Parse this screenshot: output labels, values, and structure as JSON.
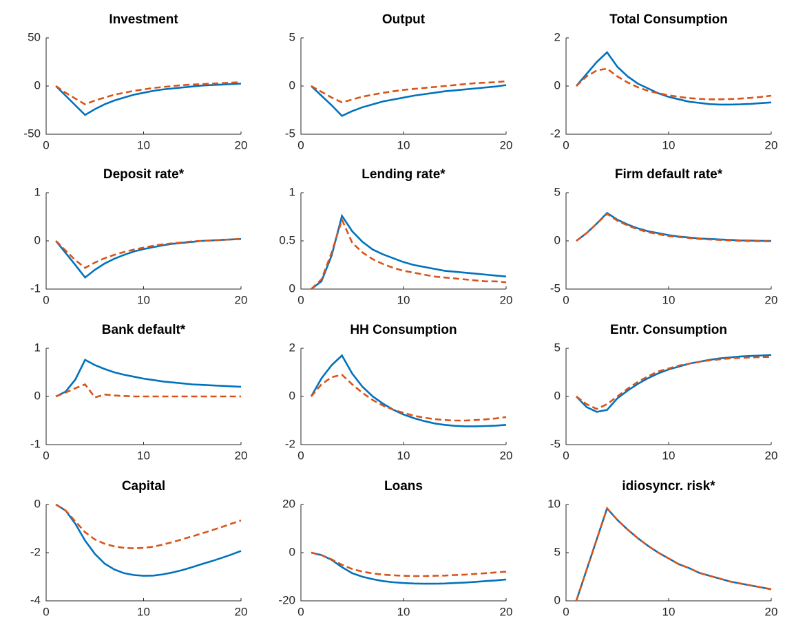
{
  "chart_data": [
    {
      "type": "line",
      "title": "Investment",
      "x": [
        1,
        2,
        3,
        4,
        5,
        6,
        7,
        8,
        9,
        10,
        11,
        12,
        13,
        14,
        15,
        16,
        17,
        18,
        19,
        20
      ],
      "xlim": [
        0,
        20
      ],
      "xticks": [
        0,
        10,
        20
      ],
      "ylim": [
        -50,
        50
      ],
      "yticks": [
        -50,
        0,
        50
      ],
      "series": [
        {
          "color": "#0072BD",
          "linestyle": "solid",
          "values": [
            0,
            -10,
            -20,
            -30,
            -24,
            -19,
            -15,
            -12,
            -9,
            -7,
            -5,
            -3.5,
            -2.5,
            -1.5,
            -0.5,
            0.5,
            1,
            1.5,
            2,
            2.5
          ]
        },
        {
          "color": "#D95319",
          "linestyle": "dashed",
          "values": [
            0,
            -7,
            -13,
            -19,
            -15,
            -12,
            -9,
            -7,
            -5,
            -3.5,
            -2,
            -1,
            0,
            1,
            1.5,
            2,
            2.5,
            3,
            3.5,
            4
          ]
        }
      ]
    },
    {
      "type": "line",
      "title": "Output",
      "x": [
        1,
        2,
        3,
        4,
        5,
        6,
        7,
        8,
        9,
        10,
        11,
        12,
        13,
        14,
        15,
        16,
        17,
        18,
        19,
        20
      ],
      "xlim": [
        0,
        20
      ],
      "xticks": [
        0,
        10,
        20
      ],
      "ylim": [
        -5,
        5
      ],
      "yticks": [
        -5,
        0,
        5
      ],
      "series": [
        {
          "color": "#0072BD",
          "linestyle": "solid",
          "values": [
            0,
            -1,
            -2,
            -3.1,
            -2.6,
            -2.2,
            -1.9,
            -1.6,
            -1.4,
            -1.2,
            -1.0,
            -0.85,
            -0.7,
            -0.55,
            -0.45,
            -0.35,
            -0.25,
            -0.15,
            -0.05,
            0.1
          ]
        },
        {
          "color": "#D95319",
          "linestyle": "dashed",
          "values": [
            0,
            -0.6,
            -1.2,
            -1.7,
            -1.4,
            -1.1,
            -0.9,
            -0.7,
            -0.55,
            -0.4,
            -0.3,
            -0.2,
            -0.1,
            0,
            0.1,
            0.2,
            0.3,
            0.35,
            0.4,
            0.5
          ]
        }
      ]
    },
    {
      "type": "line",
      "title": "Total Consumption",
      "x": [
        1,
        2,
        3,
        4,
        5,
        6,
        7,
        8,
        9,
        10,
        11,
        12,
        13,
        14,
        15,
        16,
        17,
        18,
        19,
        20
      ],
      "xlim": [
        0,
        20
      ],
      "xticks": [
        0,
        10,
        20
      ],
      "ylim": [
        -2,
        2
      ],
      "yticks": [
        -2,
        0,
        2
      ],
      "series": [
        {
          "color": "#0072BD",
          "linestyle": "solid",
          "values": [
            0,
            0.5,
            1.0,
            1.4,
            0.8,
            0.4,
            0.1,
            -0.1,
            -0.3,
            -0.45,
            -0.55,
            -0.65,
            -0.7,
            -0.75,
            -0.77,
            -0.77,
            -0.76,
            -0.74,
            -0.71,
            -0.68
          ]
        },
        {
          "color": "#D95319",
          "linestyle": "dashed",
          "values": [
            0,
            0.4,
            0.65,
            0.72,
            0.4,
            0.15,
            -0.05,
            -0.2,
            -0.3,
            -0.38,
            -0.45,
            -0.5,
            -0.53,
            -0.55,
            -0.55,
            -0.54,
            -0.52,
            -0.49,
            -0.45,
            -0.4
          ]
        }
      ]
    },
    {
      "type": "line",
      "title": "Deposit rate*",
      "x": [
        1,
        2,
        3,
        4,
        5,
        6,
        7,
        8,
        9,
        10,
        11,
        12,
        13,
        14,
        15,
        16,
        17,
        18,
        19,
        20
      ],
      "xlim": [
        0,
        20
      ],
      "xticks": [
        0,
        10,
        20
      ],
      "ylim": [
        -1,
        1
      ],
      "yticks": [
        -1,
        0,
        1
      ],
      "series": [
        {
          "color": "#0072BD",
          "linestyle": "solid",
          "values": [
            0,
            -0.25,
            -0.5,
            -0.76,
            -0.6,
            -0.47,
            -0.37,
            -0.29,
            -0.22,
            -0.17,
            -0.13,
            -0.09,
            -0.06,
            -0.04,
            -0.02,
            0,
            0.01,
            0.02,
            0.03,
            0.04
          ]
        },
        {
          "color": "#D95319",
          "linestyle": "dashed",
          "values": [
            0,
            -0.2,
            -0.4,
            -0.56,
            -0.45,
            -0.36,
            -0.29,
            -0.23,
            -0.18,
            -0.14,
            -0.1,
            -0.07,
            -0.05,
            -0.03,
            -0.01,
            0,
            0.01,
            0.02,
            0.03,
            0.04
          ]
        }
      ]
    },
    {
      "type": "line",
      "title": "Lending rate*",
      "x": [
        1,
        2,
        3,
        4,
        5,
        6,
        7,
        8,
        9,
        10,
        11,
        12,
        13,
        14,
        15,
        16,
        17,
        18,
        19,
        20
      ],
      "xlim": [
        0,
        20
      ],
      "xticks": [
        0,
        10,
        20
      ],
      "ylim": [
        0,
        1
      ],
      "yticks": [
        0,
        0.5,
        1
      ],
      "series": [
        {
          "color": "#0072BD",
          "linestyle": "solid",
          "values": [
            0,
            0.08,
            0.35,
            0.76,
            0.6,
            0.49,
            0.41,
            0.36,
            0.32,
            0.28,
            0.25,
            0.23,
            0.21,
            0.19,
            0.18,
            0.17,
            0.16,
            0.15,
            0.14,
            0.13
          ]
        },
        {
          "color": "#D95319",
          "linestyle": "dashed",
          "values": [
            0,
            0.1,
            0.38,
            0.72,
            0.48,
            0.38,
            0.31,
            0.26,
            0.22,
            0.19,
            0.17,
            0.15,
            0.13,
            0.12,
            0.11,
            0.1,
            0.09,
            0.08,
            0.08,
            0.07
          ]
        }
      ]
    },
    {
      "type": "line",
      "title": "Firm default rate*",
      "x": [
        1,
        2,
        3,
        4,
        5,
        6,
        7,
        8,
        9,
        10,
        11,
        12,
        13,
        14,
        15,
        16,
        17,
        18,
        19,
        20
      ],
      "xlim": [
        0,
        20
      ],
      "xticks": [
        0,
        10,
        20
      ],
      "ylim": [
        -5,
        5
      ],
      "yticks": [
        -5,
        0,
        5
      ],
      "series": [
        {
          "color": "#0072BD",
          "linestyle": "solid",
          "values": [
            0,
            0.8,
            1.8,
            2.9,
            2.2,
            1.7,
            1.3,
            1.0,
            0.8,
            0.6,
            0.45,
            0.35,
            0.25,
            0.2,
            0.15,
            0.1,
            0.05,
            0.03,
            0.01,
            0
          ]
        },
        {
          "color": "#D95319",
          "linestyle": "dashed",
          "values": [
            0,
            0.8,
            1.8,
            2.8,
            2.1,
            1.6,
            1.2,
            0.9,
            0.7,
            0.5,
            0.4,
            0.3,
            0.2,
            0.15,
            0.1,
            0.05,
            0,
            -0.02,
            -0.03,
            -0.05
          ]
        }
      ]
    },
    {
      "type": "line",
      "title": "Bank default*",
      "x": [
        1,
        2,
        3,
        4,
        5,
        6,
        7,
        8,
        9,
        10,
        11,
        12,
        13,
        14,
        15,
        16,
        17,
        18,
        19,
        20
      ],
      "xlim": [
        0,
        20
      ],
      "xticks": [
        0,
        10,
        20
      ],
      "ylim": [
        -1,
        1
      ],
      "yticks": [
        -1,
        0,
        1
      ],
      "series": [
        {
          "color": "#0072BD",
          "linestyle": "solid",
          "values": [
            0,
            0.1,
            0.35,
            0.76,
            0.65,
            0.57,
            0.5,
            0.45,
            0.41,
            0.37,
            0.34,
            0.31,
            0.29,
            0.27,
            0.25,
            0.24,
            0.23,
            0.22,
            0.21,
            0.2
          ]
        },
        {
          "color": "#D95319",
          "linestyle": "dashed",
          "values": [
            0,
            0.08,
            0.17,
            0.25,
            -0.02,
            0.04,
            0.02,
            0.01,
            0,
            0,
            0,
            0,
            0,
            0,
            0,
            0,
            0,
            0,
            0,
            0
          ]
        }
      ]
    },
    {
      "type": "line",
      "title": "HH Consumption",
      "x": [
        1,
        2,
        3,
        4,
        5,
        6,
        7,
        8,
        9,
        10,
        11,
        12,
        13,
        14,
        15,
        16,
        17,
        18,
        19,
        20
      ],
      "xlim": [
        0,
        20
      ],
      "xticks": [
        0,
        10,
        20
      ],
      "ylim": [
        -2,
        2
      ],
      "yticks": [
        -2,
        0,
        2
      ],
      "series": [
        {
          "color": "#0072BD",
          "linestyle": "solid",
          "values": [
            0,
            0.75,
            1.3,
            1.7,
            0.95,
            0.4,
            0,
            -0.3,
            -0.55,
            -0.75,
            -0.9,
            -1.02,
            -1.12,
            -1.18,
            -1.22,
            -1.24,
            -1.24,
            -1.23,
            -1.21,
            -1.18
          ]
        },
        {
          "color": "#D95319",
          "linestyle": "dashed",
          "values": [
            0,
            0.5,
            0.8,
            0.9,
            0.5,
            0.15,
            -0.15,
            -0.38,
            -0.55,
            -0.68,
            -0.8,
            -0.88,
            -0.94,
            -0.98,
            -1.0,
            -1.0,
            -0.98,
            -0.95,
            -0.91,
            -0.86
          ]
        }
      ]
    },
    {
      "type": "line",
      "title": "Entr. Consumption",
      "x": [
        1,
        2,
        3,
        4,
        5,
        6,
        7,
        8,
        9,
        10,
        11,
        12,
        13,
        14,
        15,
        16,
        17,
        18,
        19,
        20
      ],
      "xlim": [
        0,
        20
      ],
      "xticks": [
        0,
        10,
        20
      ],
      "ylim": [
        -5,
        5
      ],
      "yticks": [
        -5,
        0,
        5
      ],
      "series": [
        {
          "color": "#0072BD",
          "linestyle": "solid",
          "values": [
            0,
            -1.1,
            -1.6,
            -1.4,
            -0.2,
            0.6,
            1.3,
            1.9,
            2.4,
            2.8,
            3.1,
            3.4,
            3.6,
            3.8,
            3.95,
            4.05,
            4.15,
            4.2,
            4.25,
            4.3
          ]
        },
        {
          "color": "#D95319",
          "linestyle": "dashed",
          "values": [
            0,
            -0.8,
            -1.3,
            -0.8,
            0,
            0.8,
            1.5,
            2.1,
            2.6,
            2.9,
            3.2,
            3.4,
            3.6,
            3.75,
            3.85,
            3.95,
            4.0,
            4.05,
            4.08,
            4.1
          ]
        }
      ]
    },
    {
      "type": "line",
      "title": "Capital",
      "x": [
        1,
        2,
        3,
        4,
        5,
        6,
        7,
        8,
        9,
        10,
        11,
        12,
        13,
        14,
        15,
        16,
        17,
        18,
        19,
        20
      ],
      "xlim": [
        0,
        20
      ],
      "xticks": [
        0,
        10,
        20
      ],
      "ylim": [
        -4,
        0
      ],
      "yticks": [
        -4,
        -2,
        0
      ],
      "series": [
        {
          "color": "#0072BD",
          "linestyle": "solid",
          "values": [
            0,
            -0.25,
            -0.8,
            -1.5,
            -2.05,
            -2.45,
            -2.7,
            -2.85,
            -2.93,
            -2.96,
            -2.95,
            -2.9,
            -2.82,
            -2.72,
            -2.6,
            -2.47,
            -2.35,
            -2.22,
            -2.08,
            -1.93
          ]
        },
        {
          "color": "#D95319",
          "linestyle": "dashed",
          "values": [
            0,
            -0.25,
            -0.7,
            -1.15,
            -1.45,
            -1.63,
            -1.74,
            -1.8,
            -1.82,
            -1.8,
            -1.75,
            -1.66,
            -1.56,
            -1.44,
            -1.32,
            -1.2,
            -1.07,
            -0.94,
            -0.8,
            -0.66
          ]
        }
      ]
    },
    {
      "type": "line",
      "title": "Loans",
      "x": [
        1,
        2,
        3,
        4,
        5,
        6,
        7,
        8,
        9,
        10,
        11,
        12,
        13,
        14,
        15,
        16,
        17,
        18,
        19,
        20
      ],
      "xlim": [
        0,
        20
      ],
      "xticks": [
        0,
        10,
        20
      ],
      "ylim": [
        -20,
        20
      ],
      "yticks": [
        -20,
        0,
        20
      ],
      "series": [
        {
          "color": "#0072BD",
          "linestyle": "solid",
          "values": [
            0,
            -1,
            -3,
            -6,
            -8.5,
            -10,
            -11,
            -11.8,
            -12.3,
            -12.6,
            -12.8,
            -12.9,
            -12.9,
            -12.8,
            -12.6,
            -12.4,
            -12.1,
            -11.8,
            -11.5,
            -11.1
          ]
        },
        {
          "color": "#D95319",
          "linestyle": "dashed",
          "values": [
            0,
            -1,
            -2.8,
            -5,
            -6.8,
            -7.9,
            -8.6,
            -9.1,
            -9.4,
            -9.6,
            -9.7,
            -9.7,
            -9.6,
            -9.5,
            -9.3,
            -9.1,
            -8.8,
            -8.5,
            -8.2,
            -7.9
          ]
        }
      ]
    },
    {
      "type": "line",
      "title": "idiosyncr. risk*",
      "x": [
        1,
        2,
        3,
        4,
        5,
        6,
        7,
        8,
        9,
        10,
        11,
        12,
        13,
        14,
        15,
        16,
        17,
        18,
        19,
        20
      ],
      "xlim": [
        0,
        20
      ],
      "xticks": [
        0,
        10,
        20
      ],
      "ylim": [
        0,
        10
      ],
      "yticks": [
        0,
        5,
        10
      ],
      "series": [
        {
          "color": "#0072BD",
          "linestyle": "solid",
          "values": [
            0,
            3.2,
            6.4,
            9.6,
            8.4,
            7.4,
            6.5,
            5.7,
            5.0,
            4.4,
            3.8,
            3.4,
            2.9,
            2.6,
            2.3,
            2.0,
            1.8,
            1.6,
            1.4,
            1.2
          ]
        },
        {
          "color": "#D95319",
          "linestyle": "dashed",
          "values": [
            0,
            3.2,
            6.4,
            9.6,
            8.4,
            7.4,
            6.5,
            5.7,
            5.0,
            4.4,
            3.8,
            3.4,
            2.9,
            2.6,
            2.3,
            2.0,
            1.8,
            1.6,
            1.4,
            1.2
          ]
        }
      ]
    }
  ]
}
